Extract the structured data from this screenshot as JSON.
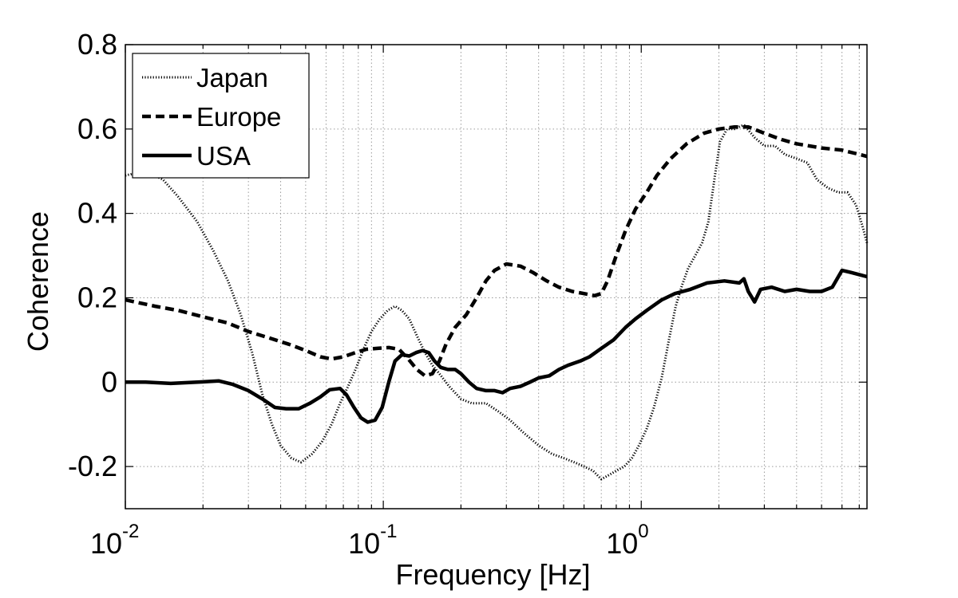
{
  "chart_data": {
    "type": "line",
    "title": "",
    "xlabel": "Frequency [Hz]",
    "ylabel": "Coherence",
    "xscale": "log",
    "xlim": [
      0.01,
      7.5
    ],
    "ylim": [
      -0.3,
      0.8
    ],
    "grid": true,
    "legend": "top-left",
    "x_ticks": [
      {
        "base": "10",
        "exp": "-2",
        "value": 0.01
      },
      {
        "base": "10",
        "exp": "-1",
        "value": 0.1
      },
      {
        "base": "10",
        "exp": "0",
        "value": 1
      }
    ],
    "y_ticks": [
      {
        "label": "-0.2",
        "value": -0.2
      },
      {
        "label": "0",
        "value": 0
      },
      {
        "label": "0.2",
        "value": 0.2
      },
      {
        "label": "0.4",
        "value": 0.4
      },
      {
        "label": "0.6",
        "value": 0.6
      },
      {
        "label": "0.8",
        "value": 0.8
      }
    ],
    "series": [
      {
        "name": "Japan",
        "style": "dotted",
        "color": "#000000",
        "points": [
          [
            0.01,
            0.49
          ],
          [
            0.012,
            0.5
          ],
          [
            0.014,
            0.48
          ],
          [
            0.016,
            0.44
          ],
          [
            0.019,
            0.38
          ],
          [
            0.022,
            0.31
          ],
          [
            0.025,
            0.24
          ],
          [
            0.028,
            0.16
          ],
          [
            0.031,
            0.07
          ],
          [
            0.034,
            -0.03
          ],
          [
            0.037,
            -0.1
          ],
          [
            0.04,
            -0.15
          ],
          [
            0.044,
            -0.18
          ],
          [
            0.048,
            -0.19
          ],
          [
            0.053,
            -0.17
          ],
          [
            0.058,
            -0.14
          ],
          [
            0.063,
            -0.1
          ],
          [
            0.068,
            -0.05
          ],
          [
            0.073,
            -0.01
          ],
          [
            0.078,
            0.03
          ],
          [
            0.084,
            0.08
          ],
          [
            0.09,
            0.12
          ],
          [
            0.097,
            0.15
          ],
          [
            0.104,
            0.17
          ],
          [
            0.111,
            0.18
          ],
          [
            0.118,
            0.17
          ],
          [
            0.126,
            0.15
          ],
          [
            0.135,
            0.11
          ],
          [
            0.145,
            0.07
          ],
          [
            0.155,
            0.04
          ],
          [
            0.165,
            0.02
          ],
          [
            0.18,
            -0.01
          ],
          [
            0.2,
            -0.04
          ],
          [
            0.22,
            -0.05
          ],
          [
            0.25,
            -0.05
          ],
          [
            0.28,
            -0.07
          ],
          [
            0.31,
            -0.09
          ],
          [
            0.35,
            -0.12
          ],
          [
            0.4,
            -0.15
          ],
          [
            0.45,
            -0.17
          ],
          [
            0.5,
            -0.18
          ],
          [
            0.55,
            -0.19
          ],
          [
            0.6,
            -0.2
          ],
          [
            0.65,
            -0.21
          ],
          [
            0.7,
            -0.23
          ],
          [
            0.75,
            -0.22
          ],
          [
            0.8,
            -0.21
          ],
          [
            0.86,
            -0.2
          ],
          [
            0.92,
            -0.18
          ],
          [
            0.98,
            -0.15
          ],
          [
            1.05,
            -0.11
          ],
          [
            1.12,
            -0.06
          ],
          [
            1.2,
            0.01
          ],
          [
            1.28,
            0.1
          ],
          [
            1.36,
            0.18
          ],
          [
            1.44,
            0.23
          ],
          [
            1.52,
            0.27
          ],
          [
            1.62,
            0.3
          ],
          [
            1.72,
            0.33
          ],
          [
            1.82,
            0.38
          ],
          [
            1.92,
            0.48
          ],
          [
            2.02,
            0.57
          ],
          [
            2.15,
            0.6
          ],
          [
            2.3,
            0.6
          ],
          [
            2.5,
            0.61
          ],
          [
            2.75,
            0.58
          ],
          [
            3.0,
            0.56
          ],
          [
            3.3,
            0.56
          ],
          [
            3.6,
            0.54
          ],
          [
            4.0,
            0.53
          ],
          [
            4.4,
            0.52
          ],
          [
            4.8,
            0.48
          ],
          [
            5.3,
            0.46
          ],
          [
            5.8,
            0.45
          ],
          [
            6.3,
            0.45
          ],
          [
            6.8,
            0.42
          ],
          [
            7.2,
            0.37
          ],
          [
            7.5,
            0.33
          ]
        ]
      },
      {
        "name": "Europe",
        "style": "dashed",
        "color": "#000000",
        "points": [
          [
            0.01,
            0.195
          ],
          [
            0.013,
            0.18
          ],
          [
            0.016,
            0.17
          ],
          [
            0.02,
            0.155
          ],
          [
            0.025,
            0.14
          ],
          [
            0.03,
            0.12
          ],
          [
            0.036,
            0.105
          ],
          [
            0.043,
            0.09
          ],
          [
            0.05,
            0.075
          ],
          [
            0.057,
            0.06
          ],
          [
            0.063,
            0.055
          ],
          [
            0.07,
            0.06
          ],
          [
            0.078,
            0.07
          ],
          [
            0.086,
            0.078
          ],
          [
            0.095,
            0.08
          ],
          [
            0.105,
            0.082
          ],
          [
            0.115,
            0.078
          ],
          [
            0.125,
            0.055
          ],
          [
            0.135,
            0.03
          ],
          [
            0.145,
            0.015
          ],
          [
            0.155,
            0.02
          ],
          [
            0.165,
            0.05
          ],
          [
            0.175,
            0.09
          ],
          [
            0.19,
            0.13
          ],
          [
            0.21,
            0.16
          ],
          [
            0.23,
            0.2
          ],
          [
            0.25,
            0.24
          ],
          [
            0.27,
            0.265
          ],
          [
            0.3,
            0.28
          ],
          [
            0.34,
            0.275
          ],
          [
            0.38,
            0.26
          ],
          [
            0.43,
            0.24
          ],
          [
            0.48,
            0.225
          ],
          [
            0.54,
            0.215
          ],
          [
            0.6,
            0.21
          ],
          [
            0.66,
            0.205
          ],
          [
            0.7,
            0.21
          ],
          [
            0.74,
            0.24
          ],
          [
            0.8,
            0.3
          ],
          [
            0.87,
            0.36
          ],
          [
            0.95,
            0.41
          ],
          [
            1.05,
            0.45
          ],
          [
            1.15,
            0.49
          ],
          [
            1.3,
            0.53
          ],
          [
            1.5,
            0.565
          ],
          [
            1.75,
            0.59
          ],
          [
            2.0,
            0.6
          ],
          [
            2.3,
            0.605
          ],
          [
            2.6,
            0.605
          ],
          [
            3.0,
            0.59
          ],
          [
            3.5,
            0.575
          ],
          [
            4.0,
            0.565
          ],
          [
            5.0,
            0.555
          ],
          [
            6.0,
            0.55
          ],
          [
            7.0,
            0.54
          ],
          [
            7.5,
            0.535
          ]
        ]
      },
      {
        "name": "USA",
        "style": "solid",
        "color": "#000000",
        "points": [
          [
            0.01,
            0.0
          ],
          [
            0.012,
            0.0
          ],
          [
            0.015,
            -0.003
          ],
          [
            0.019,
            0.0
          ],
          [
            0.023,
            0.003
          ],
          [
            0.026,
            -0.005
          ],
          [
            0.03,
            -0.02
          ],
          [
            0.034,
            -0.04
          ],
          [
            0.038,
            -0.06
          ],
          [
            0.042,
            -0.063
          ],
          [
            0.047,
            -0.063
          ],
          [
            0.052,
            -0.05
          ],
          [
            0.057,
            -0.035
          ],
          [
            0.062,
            -0.018
          ],
          [
            0.068,
            -0.015
          ],
          [
            0.072,
            -0.03
          ],
          [
            0.077,
            -0.06
          ],
          [
            0.082,
            -0.085
          ],
          [
            0.087,
            -0.095
          ],
          [
            0.093,
            -0.09
          ],
          [
            0.099,
            -0.06
          ],
          [
            0.105,
            0.0
          ],
          [
            0.111,
            0.05
          ],
          [
            0.118,
            0.065
          ],
          [
            0.126,
            0.062
          ],
          [
            0.134,
            0.07
          ],
          [
            0.142,
            0.075
          ],
          [
            0.15,
            0.07
          ],
          [
            0.158,
            0.05
          ],
          [
            0.167,
            0.035
          ],
          [
            0.178,
            0.03
          ],
          [
            0.19,
            0.03
          ],
          [
            0.2,
            0.02
          ],
          [
            0.215,
            0.0
          ],
          [
            0.23,
            -0.015
          ],
          [
            0.25,
            -0.02
          ],
          [
            0.27,
            -0.02
          ],
          [
            0.29,
            -0.025
          ],
          [
            0.31,
            -0.015
          ],
          [
            0.34,
            -0.01
          ],
          [
            0.37,
            0.0
          ],
          [
            0.4,
            0.01
          ],
          [
            0.44,
            0.015
          ],
          [
            0.48,
            0.03
          ],
          [
            0.52,
            0.04
          ],
          [
            0.58,
            0.05
          ],
          [
            0.63,
            0.06
          ],
          [
            0.7,
            0.08
          ],
          [
            0.78,
            0.1
          ],
          [
            0.87,
            0.13
          ],
          [
            0.95,
            0.15
          ],
          [
            1.05,
            0.17
          ],
          [
            1.2,
            0.195
          ],
          [
            1.35,
            0.21
          ],
          [
            1.55,
            0.22
          ],
          [
            1.8,
            0.235
          ],
          [
            2.1,
            0.24
          ],
          [
            2.4,
            0.235
          ],
          [
            2.5,
            0.245
          ],
          [
            2.6,
            0.215
          ],
          [
            2.75,
            0.19
          ],
          [
            2.9,
            0.22
          ],
          [
            3.2,
            0.225
          ],
          [
            3.6,
            0.215
          ],
          [
            4.0,
            0.22
          ],
          [
            4.5,
            0.215
          ],
          [
            5.0,
            0.215
          ],
          [
            5.5,
            0.225
          ],
          [
            6.0,
            0.265
          ],
          [
            6.5,
            0.26
          ],
          [
            7.0,
            0.255
          ],
          [
            7.5,
            0.25
          ]
        ]
      }
    ]
  }
}
